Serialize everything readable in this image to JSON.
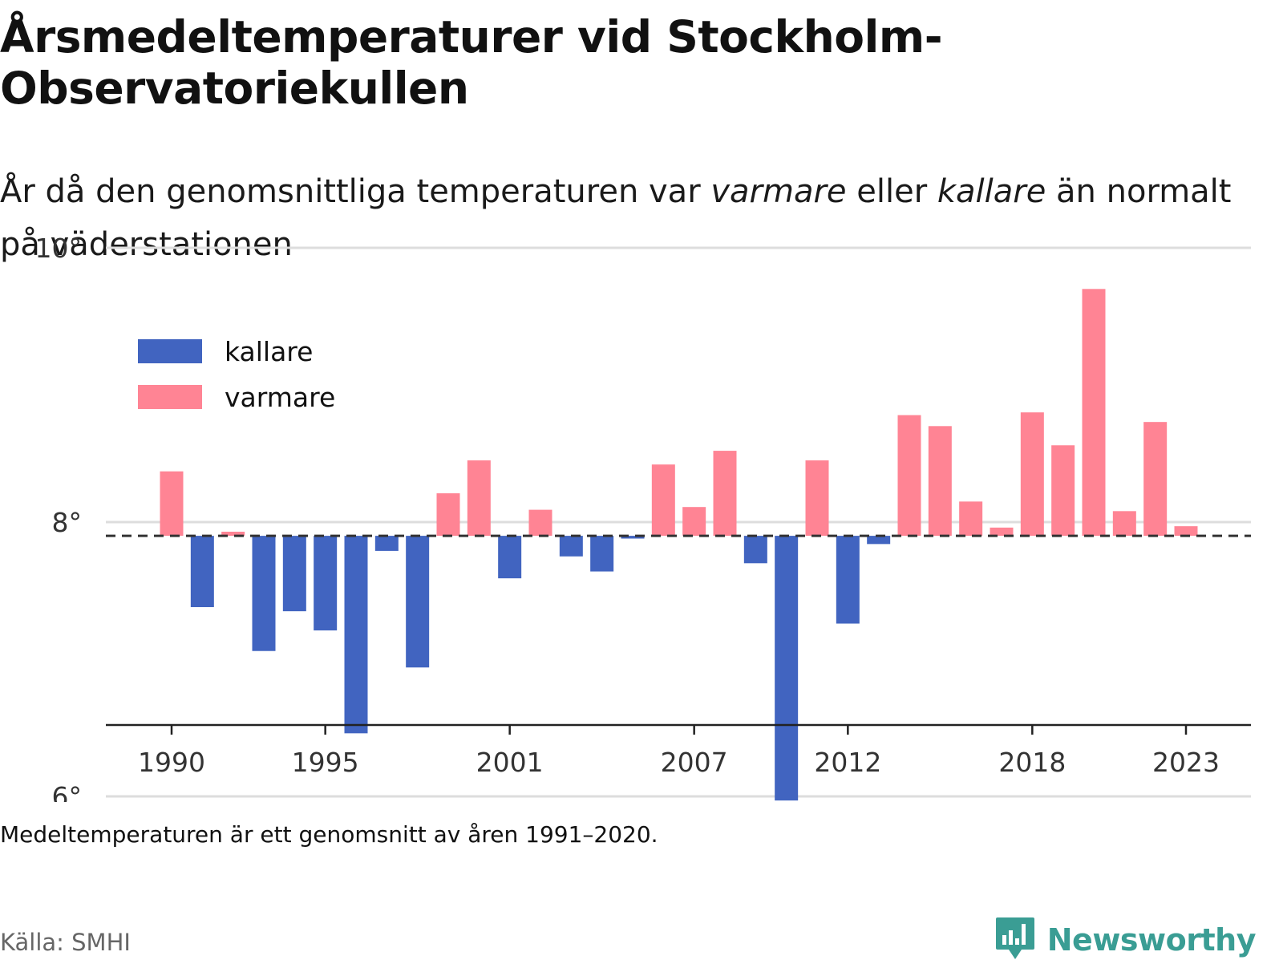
{
  "header": {
    "title": "Årsmedeltemperaturer vid Stockholm-Observatoriekullen",
    "subtitle_before": "År då den genomsnittliga temperaturen var ",
    "subtitle_warm": "varmare",
    "subtitle_middle": " eller ",
    "subtitle_cold": "kallare",
    "subtitle_after": " än normalt på väderstationen"
  },
  "footer": {
    "note": "Medeltemperaturen är ett genomsnitt av åren 1991–2020.",
    "source": "Källa: SMHI",
    "brand": "Newsworthy",
    "brand_icon": "newsworthy-logo-icon"
  },
  "colors": {
    "kallare": "#4164c0",
    "varmare": "#ff8494",
    "reference_line": "#333333",
    "grid": "#dddddd",
    "brand": "#3a9d94"
  },
  "chart_data": {
    "type": "bar",
    "title": "Årsmedeltemperaturer vid Stockholm-Observatoriekullen",
    "ylim": [
      5,
      11
    ],
    "yticks": [
      6,
      8,
      10
    ],
    "ytick_labels": [
      "6°",
      "8°",
      "10°"
    ],
    "xticks": [
      1990,
      1995,
      2001,
      2007,
      2012,
      2018,
      2023
    ],
    "xtick_labels": [
      "1990",
      "1995",
      "2001",
      "2007",
      "2012",
      "2018",
      "2023"
    ],
    "baseline": 7.9,
    "grid": true,
    "legend_position": "top-left",
    "legend": [
      {
        "key": "kallare",
        "label": "kallare"
      },
      {
        "key": "varmare",
        "label": "varmare"
      }
    ],
    "x": [
      1990,
      1991,
      1992,
      1993,
      1994,
      1995,
      1996,
      1997,
      1998,
      1999,
      2000,
      2001,
      2002,
      2003,
      2004,
      2005,
      2006,
      2007,
      2008,
      2009,
      2010,
      2011,
      2012,
      2013,
      2014,
      2015,
      2016,
      2017,
      2018,
      2019,
      2020,
      2021,
      2022,
      2023
    ],
    "values": [
      8.37,
      7.38,
      7.93,
      7.06,
      7.35,
      7.21,
      6.46,
      7.79,
      6.94,
      8.21,
      8.45,
      7.59,
      8.09,
      7.75,
      7.64,
      7.88,
      8.42,
      8.11,
      8.52,
      7.7,
      5.97,
      8.45,
      7.26,
      7.84,
      8.78,
      8.7,
      8.15,
      7.96,
      8.8,
      8.56,
      9.7,
      8.08,
      8.73,
      7.97
    ]
  }
}
